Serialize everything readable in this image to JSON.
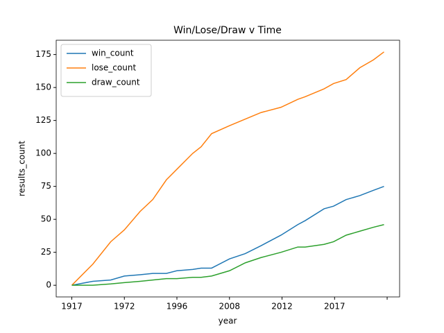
{
  "chart_data": {
    "type": "line",
    "title": "Win/Lose/Draw v Time",
    "xlabel": "year",
    "ylabel": "results_count",
    "x": [
      0,
      20,
      37,
      50,
      65,
      77,
      90,
      100,
      115,
      123,
      133,
      150,
      165,
      180,
      199,
      215,
      222,
      240,
      249,
      261,
      274,
      287,
      297
    ],
    "series": [
      {
        "name": "win_count",
        "color": "#1f77b4",
        "values": [
          0,
          3,
          4,
          7,
          8,
          9,
          9,
          11,
          12,
          13,
          13,
          20,
          24,
          30,
          38,
          46,
          49,
          58,
          60,
          65,
          68,
          72,
          75
        ]
      },
      {
        "name": "lose_count",
        "color": "#ff7f0e",
        "values": [
          0,
          16,
          33,
          42,
          56,
          65,
          80,
          88,
          100,
          105,
          115,
          121,
          126,
          131,
          135,
          141,
          143,
          149,
          153,
          156,
          165,
          171,
          177
        ]
      },
      {
        "name": "draw_count",
        "color": "#2ca02c",
        "values": [
          0,
          0,
          1,
          2,
          3,
          4,
          5,
          5,
          6,
          6,
          7,
          11,
          17,
          21,
          25,
          29,
          29,
          31,
          33,
          38,
          41,
          44,
          46
        ]
      }
    ],
    "xlim": [
      -14.85,
      311.85
    ],
    "xticks": [
      {
        "value": 0,
        "label": "1917"
      },
      {
        "value": 50,
        "label": "1972"
      },
      {
        "value": 100,
        "label": "1996"
      },
      {
        "value": 150,
        "label": "2008"
      },
      {
        "value": 200,
        "label": "2012"
      },
      {
        "value": 250,
        "label": "2017"
      },
      {
        "value": 300
      }
    ],
    "ylim": [
      -8.85,
      185.85
    ],
    "yticks": [
      0,
      25,
      50,
      75,
      100,
      125,
      150,
      175
    ],
    "legend": "upper left"
  }
}
